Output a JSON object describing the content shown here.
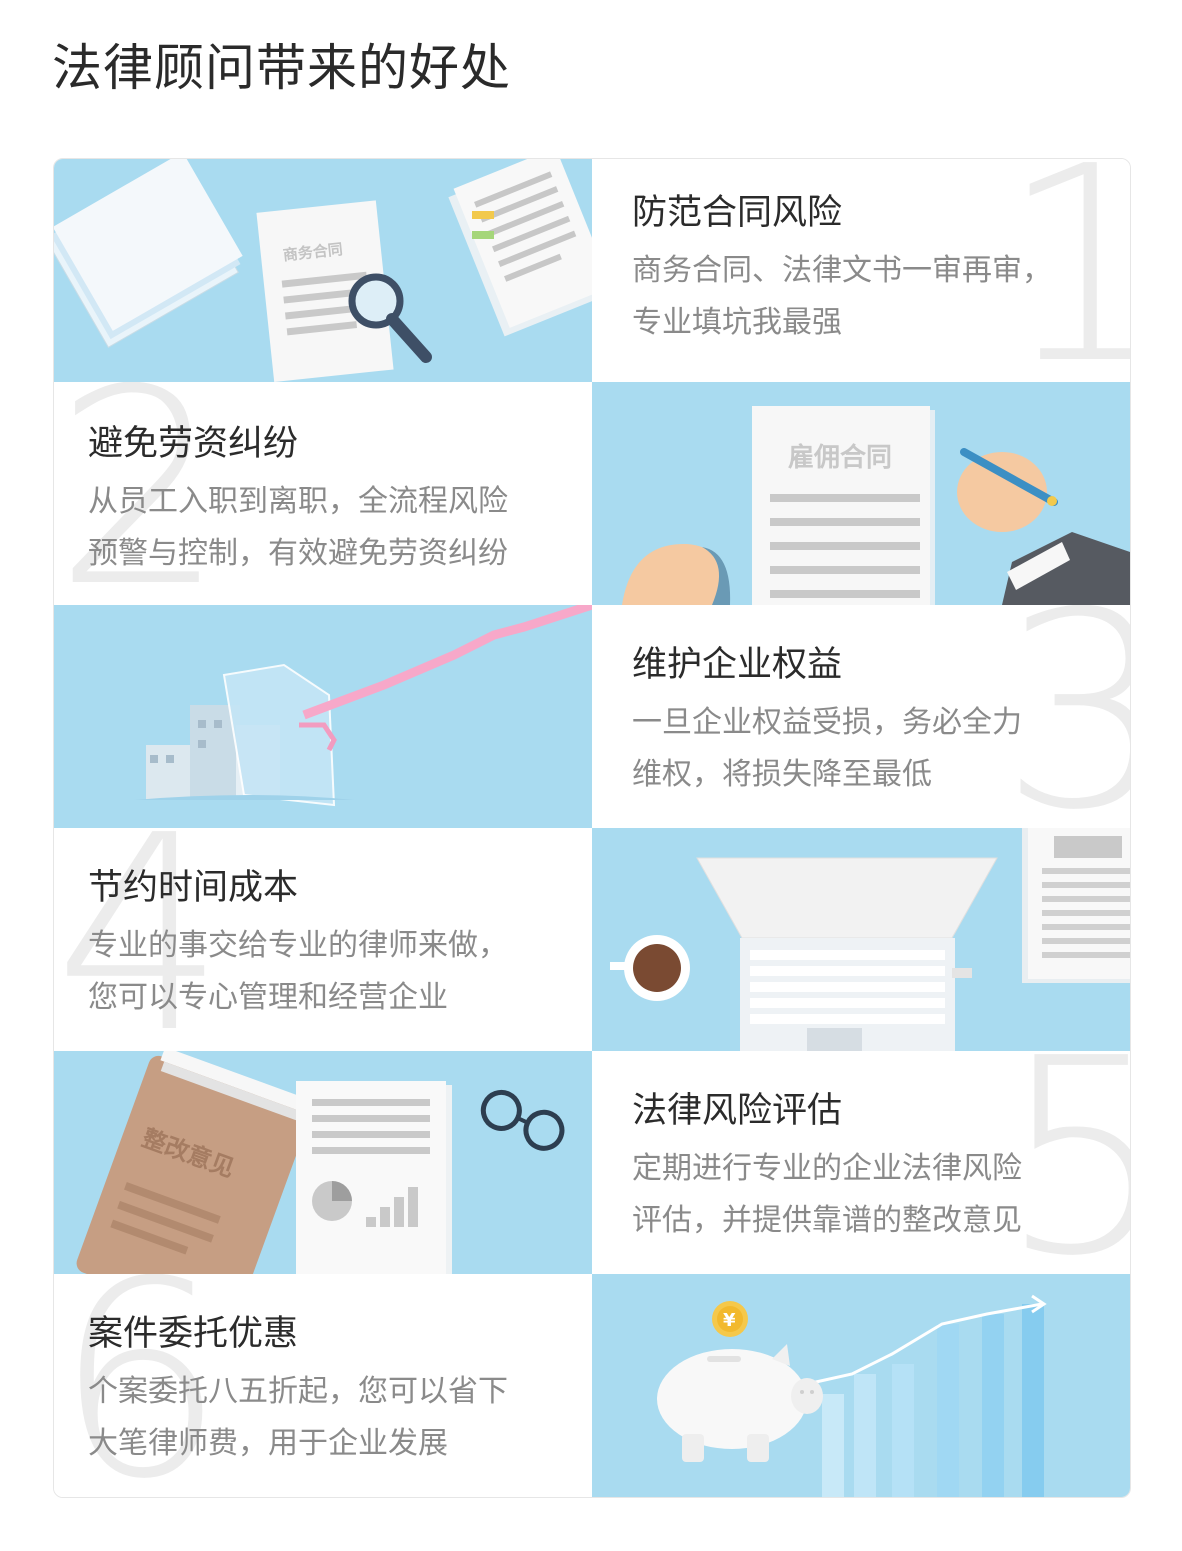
{
  "page": {
    "title": "法律顾问带来的好处"
  },
  "colors": {
    "panel_bg": "#a9dbf0",
    "number": "#ececec",
    "title_text": "#2b2b2b",
    "desc_text": "#8a8a8a"
  },
  "benefits": [
    {
      "number": "1",
      "title": "防范合同风险",
      "desc": [
        "商务合同、法律文书一审再审，",
        "专业填坑我最强"
      ],
      "illustration": {
        "icon": "contract-magnifier-icon",
        "label": "商务合同"
      }
    },
    {
      "number": "2",
      "title": "避免劳资纠纷",
      "desc": [
        "从员工入职到离职，全流程风险",
        "预警与控制，有效避免劳资纠纷"
      ],
      "illustration": {
        "icon": "employment-contract-signing-icon",
        "label": "雇佣合同"
      }
    },
    {
      "number": "3",
      "title": "维护企业权益",
      "desc": [
        "一旦企业权益受损，务必全力",
        "维权，将损失降至最低"
      ],
      "illustration": {
        "icon": "shield-buildings-icon"
      }
    },
    {
      "number": "4",
      "title": "节约时间成本",
      "desc": [
        "专业的事交给专业的律师来做，",
        "您可以专心管理和经营企业"
      ],
      "illustration": {
        "icon": "laptop-coffee-icon"
      }
    },
    {
      "number": "5",
      "title": "法律风险评估",
      "desc": [
        "定期进行专业的企业法律风险",
        "评估，并提供靠谱的整改意见"
      ],
      "illustration": {
        "icon": "folder-glasses-report-icon",
        "label": "整改意见"
      }
    },
    {
      "number": "6",
      "title": "案件委托优惠",
      "desc": [
        "个案委托八五折起，您可以省下",
        "大笔律师费，用于企业发展"
      ],
      "illustration": {
        "icon": "piggy-bank-coin-icon",
        "coin": "¥"
      }
    }
  ]
}
